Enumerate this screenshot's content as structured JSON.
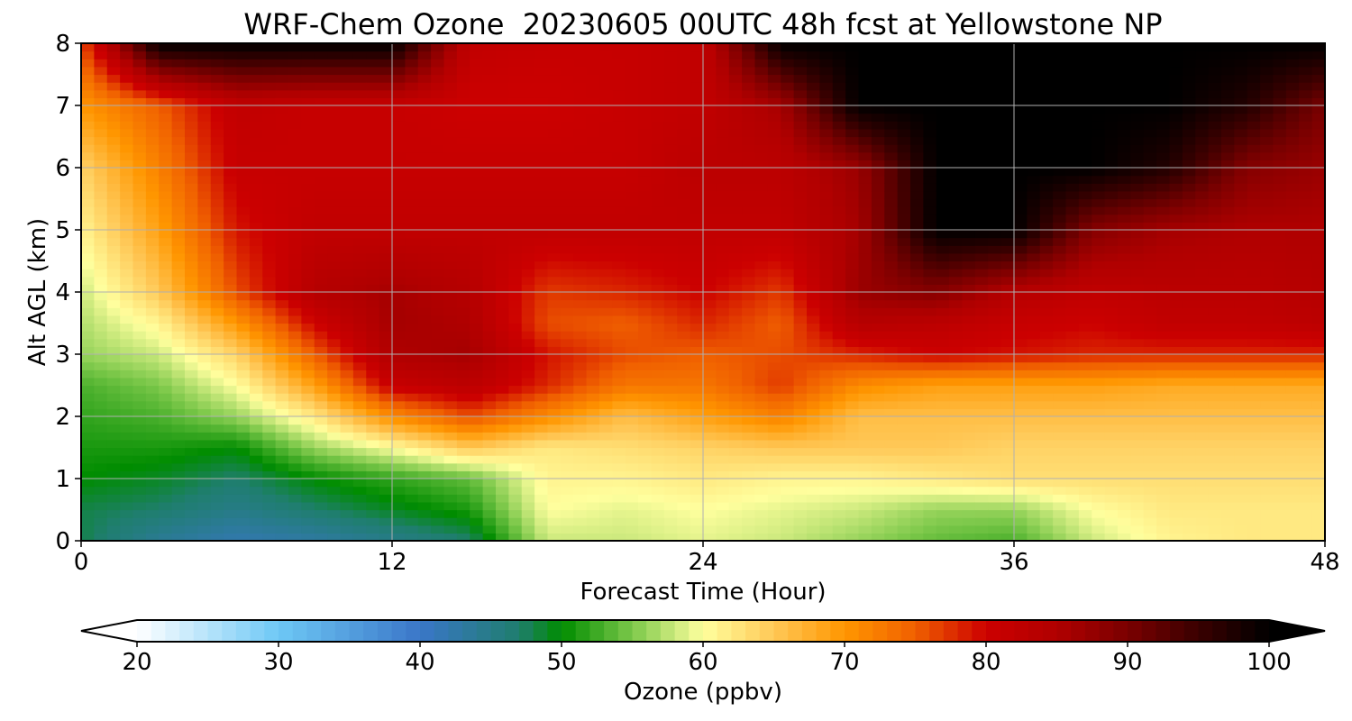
{
  "chart_data": {
    "type": "heatmap",
    "title": "WRF-Chem Ozone  20230605 00UTC 48h fcst at Yellowstone NP",
    "xlabel": "Forecast Time (Hour)",
    "ylabel": "Alt AGL (km)",
    "xlim": [
      0,
      48
    ],
    "ylim": [
      0,
      8
    ],
    "x_ticks": [
      "0",
      "12",
      "24",
      "36",
      "48"
    ],
    "y_ticks": [
      "0",
      "1",
      "2",
      "3",
      "4",
      "5",
      "6",
      "7",
      "8"
    ],
    "grid": true,
    "hours": [
      0,
      3,
      6,
      9,
      12,
      15,
      18,
      21,
      24,
      27,
      30,
      33,
      36,
      39,
      42,
      45,
      48
    ],
    "altitudes_km": [
      0.0,
      0.5,
      1.0,
      1.5,
      2.0,
      2.5,
      3.0,
      3.5,
      4.0,
      5.0,
      6.0,
      7.0,
      8.0
    ],
    "ozone_ppbv": [
      [
        48,
        44,
        42,
        43,
        45,
        47,
        58,
        58,
        59,
        58,
        56,
        54,
        53,
        58,
        61,
        62,
        62
      ],
      [
        48,
        47,
        45,
        47,
        49,
        51,
        60,
        59,
        60,
        59,
        58,
        56,
        56,
        60,
        62,
        62,
        62
      ],
      [
        50,
        49,
        47,
        50,
        52,
        54,
        61,
        61,
        62,
        61,
        61,
        62,
        63,
        63,
        63,
        63,
        63
      ],
      [
        51,
        51,
        50,
        56,
        60,
        65,
        62,
        63,
        64,
        65,
        65,
        65,
        64,
        64,
        64,
        64,
        64
      ],
      [
        52,
        53,
        56,
        62,
        71,
        76,
        71,
        66,
        69,
        72,
        66,
        66,
        66,
        66,
        66,
        66,
        66
      ],
      [
        53,
        55,
        60,
        69,
        81,
        83,
        78,
        73,
        73,
        77,
        71,
        69,
        69,
        69,
        68,
        68,
        68
      ],
      [
        56,
        58,
        64,
        75,
        85,
        86,
        79,
        76,
        75,
        76,
        78,
        80,
        79,
        78,
        78,
        78,
        78
      ],
      [
        57,
        61,
        70,
        80,
        86,
        85,
        76,
        75,
        78,
        75,
        84,
        83,
        81,
        80,
        82,
        82,
        83
      ],
      [
        58,
        65,
        76,
        84,
        86,
        84,
        77,
        78,
        80,
        77,
        87,
        89,
        84,
        82,
        83,
        83,
        84
      ],
      [
        61,
        69,
        79,
        82,
        82,
        82,
        82,
        82,
        82,
        82,
        86,
        100,
        100,
        89,
        86,
        85,
        85
      ],
      [
        64,
        72,
        81,
        81,
        81,
        81,
        81,
        81,
        83,
        83,
        87,
        100,
        100,
        100,
        97,
        89,
        87
      ],
      [
        70,
        75,
        82,
        81,
        81,
        80,
        80,
        81,
        82,
        86,
        100,
        100,
        100,
        100,
        100,
        97,
        90
      ],
      [
        76,
        100,
        100,
        100,
        100,
        82,
        81,
        81,
        82,
        100,
        100,
        100,
        100,
        100,
        100,
        100,
        100
      ]
    ],
    "colorbar": {
      "label": "Ozone  (ppbv)",
      "ticks": [
        "20",
        "30",
        "40",
        "50",
        "60",
        "70",
        "80",
        "90",
        "100"
      ],
      "range": [
        20,
        100
      ],
      "extend": "both",
      "stops": [
        {
          "v": 20,
          "c": "#ffffff"
        },
        {
          "v": 30,
          "c": "#6ec8f5"
        },
        {
          "v": 40,
          "c": "#3a76c8"
        },
        {
          "v": 47,
          "c": "#1f7e6e"
        },
        {
          "v": 50,
          "c": "#008c00"
        },
        {
          "v": 55,
          "c": "#7cc84a"
        },
        {
          "v": 60,
          "c": "#ffff9e"
        },
        {
          "v": 65,
          "c": "#ffc857"
        },
        {
          "v": 70,
          "c": "#ff9600"
        },
        {
          "v": 75,
          "c": "#f06000"
        },
        {
          "v": 80,
          "c": "#cc0000"
        },
        {
          "v": 85,
          "c": "#b00000"
        },
        {
          "v": 90,
          "c": "#7a0000"
        },
        {
          "v": 95,
          "c": "#3a0000"
        },
        {
          "v": 100,
          "c": "#000000"
        }
      ],
      "under_color": "#ffffff",
      "over_color": "#000000"
    }
  }
}
